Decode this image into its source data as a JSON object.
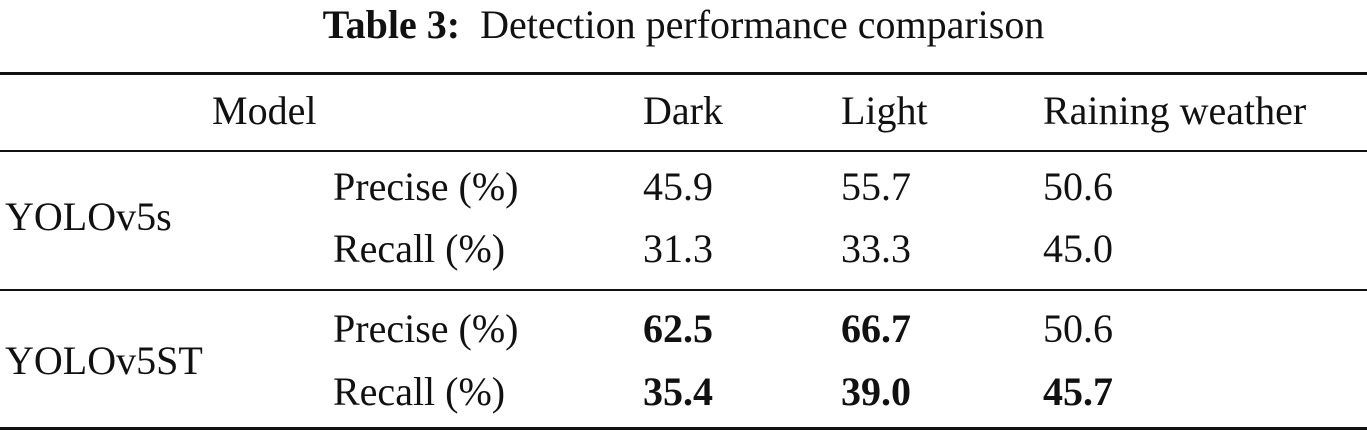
{
  "caption": {
    "label": "Table 3:",
    "title": "Detection performance comparison"
  },
  "header": {
    "model": "Model",
    "dark": "Dark",
    "light": "Light",
    "rain": "Raining weather"
  },
  "groups": [
    {
      "model": "YOLOv5s",
      "rows": [
        {
          "metric": "Precise (%)",
          "dark": "45.9",
          "light": "55.7",
          "rain": "50.6"
        },
        {
          "metric": "Recall (%)",
          "dark": "31.3",
          "light": "33.3",
          "rain": "45.0"
        }
      ]
    },
    {
      "model": "YOLOv5ST",
      "rows": [
        {
          "metric": "Precise (%)",
          "dark": "62.5",
          "light": "66.7",
          "rain": "50.6"
        },
        {
          "metric": "Recall (%)",
          "dark": "35.4",
          "light": "39.0",
          "rain": "45.7"
        }
      ]
    }
  ]
}
